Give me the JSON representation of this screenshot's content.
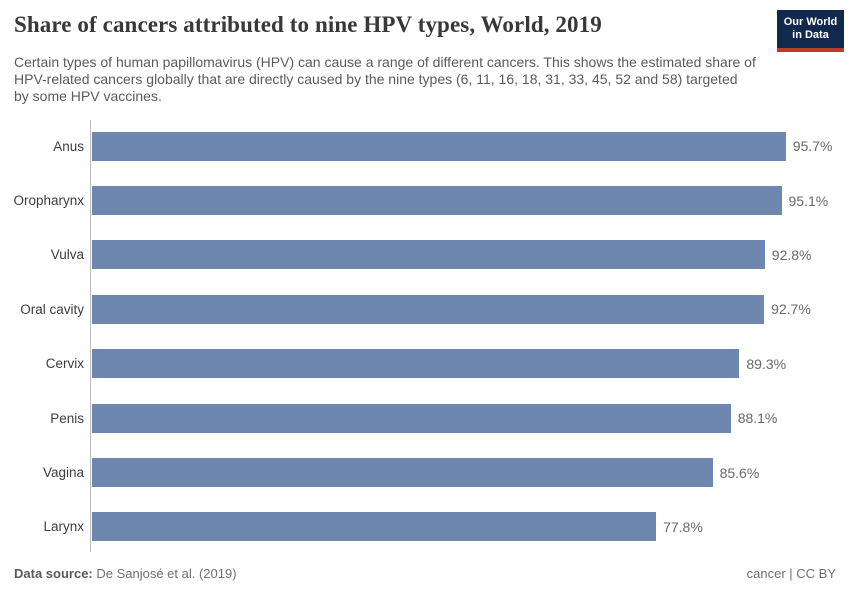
{
  "header": {
    "title": "Share of cancers attributed to nine HPV types, World, 2019",
    "subtitle": "Certain types of human papillomavirus (HPV) can cause a range of different cancers. This shows the estimated share of HPV-related cancers globally that are directly caused by the nine types (6, 11, 16, 18, 31, 33, 45, 52 and 58) targeted by some HPV vaccines.",
    "logo": {
      "line1": "Our World",
      "line2": "in Data",
      "bg_color": "#12294e",
      "accent_color": "#bc3b31"
    }
  },
  "chart_data": {
    "type": "bar",
    "orientation": "horizontal",
    "title": "Share of cancers attributed to nine HPV types, World, 2019",
    "categories": [
      "Anus",
      "Oropharynx",
      "Vulva",
      "Oral cavity",
      "Cervix",
      "Penis",
      "Vagina",
      "Larynx"
    ],
    "values": [
      95.7,
      95.1,
      92.8,
      92.7,
      89.3,
      88.1,
      85.6,
      77.8
    ],
    "value_labels": [
      "95.7%",
      "95.1%",
      "92.8%",
      "92.7%",
      "89.3%",
      "88.1%",
      "85.6%",
      "77.8%"
    ],
    "xlabel": "",
    "ylabel": "",
    "xlim": [
      0,
      100
    ],
    "grid": false,
    "legend": "none",
    "bar_color": "#6e87af",
    "axis_line_color": "#bdbdbd"
  },
  "footer": {
    "data_source_label": "Data source:",
    "data_source_value": " De Sanjosé et al. (2019)",
    "license": "cancer | CC BY"
  }
}
